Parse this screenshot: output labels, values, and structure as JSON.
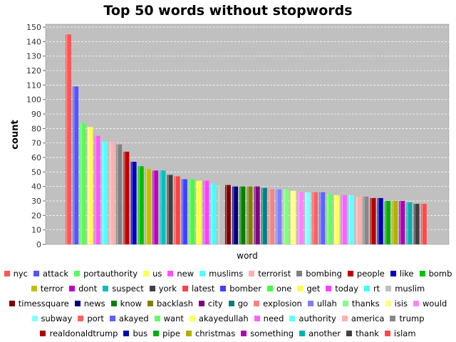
{
  "chart_data": {
    "type": "bar",
    "title": "Top 50 words without stopwords",
    "xlabel": "word",
    "ylabel": "count",
    "ylim": [
      0,
      152
    ],
    "yticks": [
      0,
      10,
      20,
      30,
      40,
      50,
      60,
      70,
      80,
      90,
      100,
      110,
      120,
      130,
      140,
      150
    ],
    "grid": true,
    "legend": "bottom",
    "plot_background": "#c0c0c0",
    "series": [
      {
        "name": "nyc",
        "value": 145,
        "color": "#ff5555"
      },
      {
        "name": "attack",
        "value": 109,
        "color": "#5555ff"
      },
      {
        "name": "portauthority",
        "value": 84,
        "color": "#55ff55"
      },
      {
        "name": "us",
        "value": 81,
        "color": "#ffff55"
      },
      {
        "name": "new",
        "value": 75,
        "color": "#ff55ff"
      },
      {
        "name": "muslims",
        "value": 71,
        "color": "#55ffff"
      },
      {
        "name": "terrorist",
        "value": 71,
        "color": "#ffafaf"
      },
      {
        "name": "bombing",
        "value": 69,
        "color": "#808080"
      },
      {
        "name": "people",
        "value": 64,
        "color": "#c00000"
      },
      {
        "name": "like",
        "value": 57,
        "color": "#0000c0"
      },
      {
        "name": "bomb",
        "value": 54,
        "color": "#00c000"
      },
      {
        "name": "terror",
        "value": 52,
        "color": "#c0c000"
      },
      {
        "name": "dont",
        "value": 51,
        "color": "#c000c0"
      },
      {
        "name": "suspect",
        "value": 51,
        "color": "#00c0c0"
      },
      {
        "name": "york",
        "value": 48,
        "color": "#404040"
      },
      {
        "name": "latest",
        "value": 47,
        "color": "#ff4040"
      },
      {
        "name": "bomber",
        "value": 45,
        "color": "#4040ff"
      },
      {
        "name": "one",
        "value": 45,
        "color": "#40ff40"
      },
      {
        "name": "get",
        "value": 44,
        "color": "#ffff40"
      },
      {
        "name": "today",
        "value": 44,
        "color": "#ff40ff"
      },
      {
        "name": "rt",
        "value": 42,
        "color": "#40ffff"
      },
      {
        "name": "muslim",
        "value": 41,
        "color": "#c0c0c0"
      },
      {
        "name": "timessquare",
        "value": 41,
        "color": "#800000"
      },
      {
        "name": "news",
        "value": 40,
        "color": "#000080"
      },
      {
        "name": "know",
        "value": 40,
        "color": "#008000"
      },
      {
        "name": "backlash",
        "value": 40,
        "color": "#808000"
      },
      {
        "name": "city",
        "value": 40,
        "color": "#800080"
      },
      {
        "name": "go",
        "value": 39,
        "color": "#008080"
      },
      {
        "name": "explosion",
        "value": 38,
        "color": "#ff8080"
      },
      {
        "name": "ullah",
        "value": 38,
        "color": "#8080ff"
      },
      {
        "name": "thanks",
        "value": 38,
        "color": "#80ff80"
      },
      {
        "name": "isis",
        "value": 37,
        "color": "#ffff80"
      },
      {
        "name": "would",
        "value": 36,
        "color": "#ff80ff"
      },
      {
        "name": "subway",
        "value": 36,
        "color": "#80ffff"
      },
      {
        "name": "port",
        "value": 36,
        "color": "#ff6060"
      },
      {
        "name": "akayed",
        "value": 36,
        "color": "#6060ff"
      },
      {
        "name": "want",
        "value": 35,
        "color": "#60ff60"
      },
      {
        "name": "akayedullah",
        "value": 34,
        "color": "#ffff60"
      },
      {
        "name": "need",
        "value": 34,
        "color": "#ff60ff"
      },
      {
        "name": "authority",
        "value": 34,
        "color": "#60ffff"
      },
      {
        "name": "america",
        "value": 33,
        "color": "#ffb0b0"
      },
      {
        "name": "trump",
        "value": 33,
        "color": "#888888"
      },
      {
        "name": "realdonaldtrump",
        "value": 32,
        "color": "#b00000"
      },
      {
        "name": "bus",
        "value": 32,
        "color": "#0000b0"
      },
      {
        "name": "pipe",
        "value": 30,
        "color": "#00b000"
      },
      {
        "name": "christmas",
        "value": 30,
        "color": "#b0b000"
      },
      {
        "name": "something",
        "value": 30,
        "color": "#b000b0"
      },
      {
        "name": "another",
        "value": 29,
        "color": "#00b0b0"
      },
      {
        "name": "thank",
        "value": 28,
        "color": "#404040"
      },
      {
        "name": "islam",
        "value": 28,
        "color": "#ff4848"
      }
    ]
  }
}
